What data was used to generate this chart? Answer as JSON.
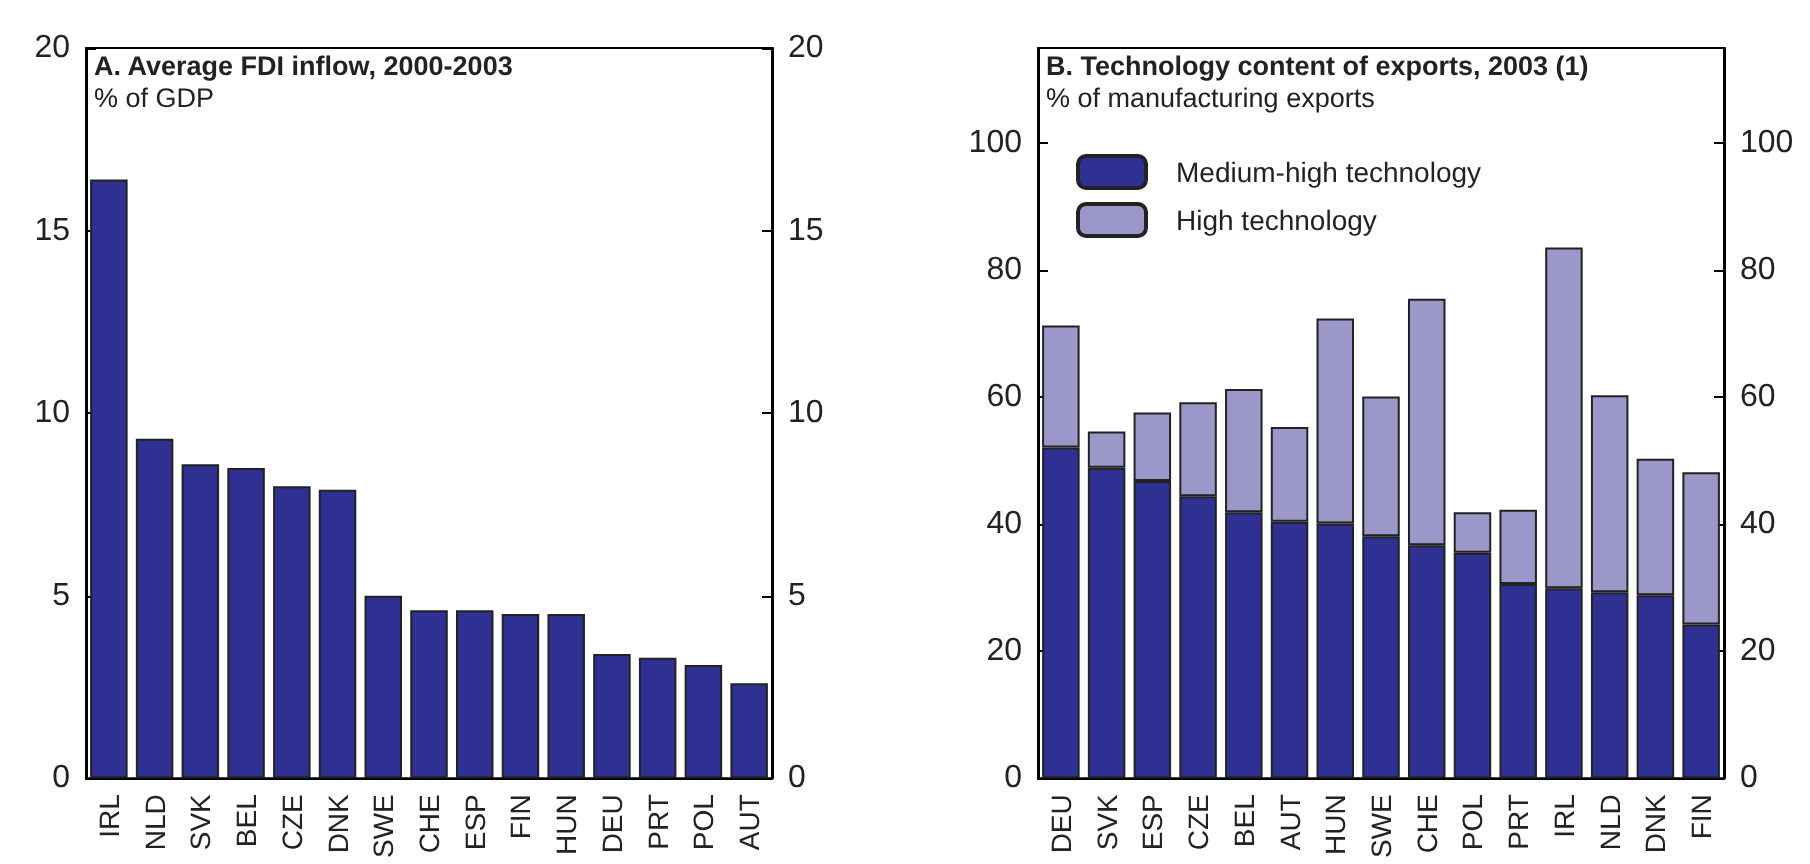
{
  "chart_data": [
    {
      "type": "bar",
      "title": "A. Average FDI inflow, 2000-2003",
      "subtitle": "% of GDP",
      "categories": [
        "IRL",
        "NLD",
        "SVK",
        "BEL",
        "CZE",
        "DNK",
        "SWE",
        "CHE",
        "ESP",
        "FIN",
        "HUN",
        "DEU",
        "PRT",
        "POL",
        "AUT"
      ],
      "series": [
        {
          "color": "#2e3192",
          "values": [
            16.4,
            9.3,
            8.6,
            8.5,
            8.0,
            7.9,
            5.0,
            4.6,
            4.6,
            4.5,
            4.5,
            3.4,
            3.3,
            3.1,
            2.6
          ]
        }
      ],
      "ylim": [
        0,
        20
      ],
      "yticks": [
        0,
        5,
        10,
        15,
        20
      ],
      "y2lim": [
        0,
        20
      ],
      "y2ticks": [
        0,
        5,
        10,
        15,
        20
      ],
      "legend": false
    },
    {
      "type": "bar",
      "title": "B. Technology content of exports, 2003 (1)",
      "subtitle": "% of manufacturing exports",
      "stacked": true,
      "categories": [
        "DEU",
        "SVK",
        "ESP",
        "CZE",
        "BEL",
        "AUT",
        "HUN",
        "SWE",
        "CHE",
        "POL",
        "PRT",
        "IRL",
        "NLD",
        "DNK",
        "FIN"
      ],
      "series": [
        {
          "name": "Medium-high technology",
          "color": "#2e3192",
          "values": [
            52.1,
            48.9,
            46.8,
            44.4,
            41.9,
            40.4,
            40.1,
            38.1,
            36.7,
            35.5,
            30.6,
            29.9,
            29.3,
            28.8,
            24.2
          ]
        },
        {
          "name": "High technology",
          "color": "#9b97c9",
          "values": [
            19.2,
            5.7,
            10.8,
            14.8,
            19.4,
            14.9,
            32.3,
            22.0,
            38.8,
            6.4,
            11.7,
            53.7,
            31.0,
            21.5,
            24.0
          ]
        }
      ],
      "ylim": [
        0,
        115
      ],
      "yticks": [
        0,
        20,
        40,
        60,
        80,
        100
      ],
      "y2lim": [
        0,
        115
      ],
      "y2ticks": [
        0,
        20,
        40,
        60,
        80,
        100
      ],
      "legend": "top left"
    }
  ]
}
